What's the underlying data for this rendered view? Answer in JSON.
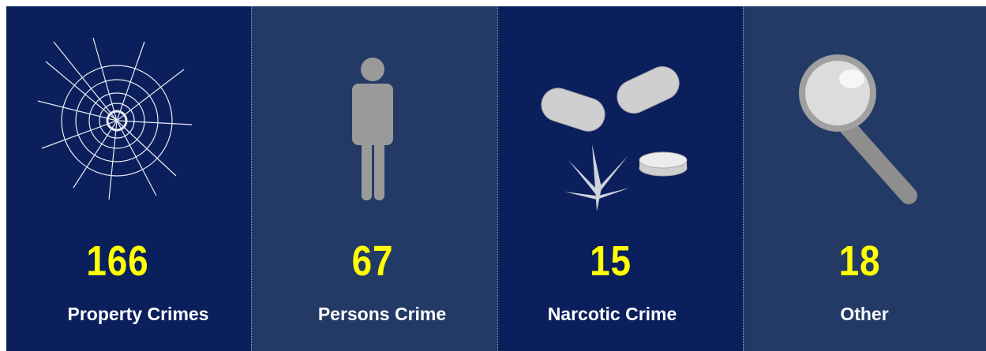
{
  "panels": [
    {
      "value": "166",
      "label": "Property Crimes"
    },
    {
      "value": "67",
      "label": "Persons Crime"
    },
    {
      "value": "15",
      "label": "Narcotic Crime"
    },
    {
      "value": "18",
      "label": "Other"
    }
  ]
}
